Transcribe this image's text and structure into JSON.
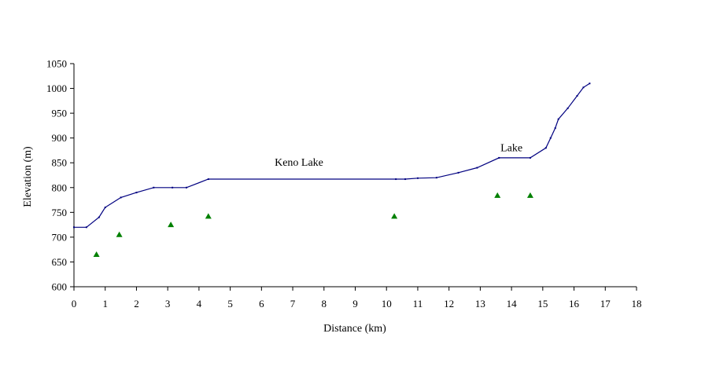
{
  "chart_data": {
    "type": "line",
    "xlabel": "Distance (km)",
    "ylabel": "Elevation (m)",
    "xlim": [
      0,
      18
    ],
    "ylim": [
      600,
      1050
    ],
    "xticks": [
      "0",
      "1",
      "2",
      "3",
      "4",
      "5",
      "6",
      "7",
      "8",
      "9",
      "10",
      "11",
      "12",
      "13",
      "14",
      "15",
      "16",
      "17",
      "18"
    ],
    "yticks": [
      "600",
      "650",
      "700",
      "750",
      "800",
      "850",
      "900",
      "950",
      "1000",
      "1050"
    ],
    "grid": false,
    "legend": "none",
    "annotations": [
      {
        "text": "Keno Lake",
        "x": 7.2,
        "y": 850
      },
      {
        "text": "Lake",
        "x": 14.0,
        "y": 880
      }
    ],
    "series": [
      {
        "kind": "line",
        "color": "#000080",
        "points": [
          [
            0,
            720
          ],
          [
            0.4,
            720
          ],
          [
            0.8,
            740
          ],
          [
            1.0,
            760
          ],
          [
            1.5,
            780
          ],
          [
            2.0,
            790
          ],
          [
            2.55,
            800
          ],
          [
            3.15,
            800
          ],
          [
            3.6,
            800
          ],
          [
            4.3,
            817
          ],
          [
            10.3,
            817
          ],
          [
            10.6,
            817
          ],
          [
            11.0,
            819
          ],
          [
            11.6,
            820
          ],
          [
            12.3,
            830
          ],
          [
            12.9,
            840
          ],
          [
            13.6,
            860
          ],
          [
            14.6,
            860
          ],
          [
            15.1,
            880
          ],
          [
            15.25,
            900
          ],
          [
            15.4,
            920
          ],
          [
            15.5,
            938
          ],
          [
            15.8,
            960
          ],
          [
            16.1,
            985
          ],
          [
            16.3,
            1002
          ],
          [
            16.5,
            1010
          ]
        ]
      },
      {
        "kind": "scatter",
        "marker": "triangle",
        "color": "#008000",
        "points": [
          [
            0.72,
            665
          ],
          [
            1.45,
            705
          ],
          [
            3.1,
            725
          ],
          [
            4.3,
            742
          ],
          [
            10.25,
            742
          ],
          [
            13.55,
            784
          ],
          [
            14.6,
            784
          ]
        ]
      }
    ]
  }
}
